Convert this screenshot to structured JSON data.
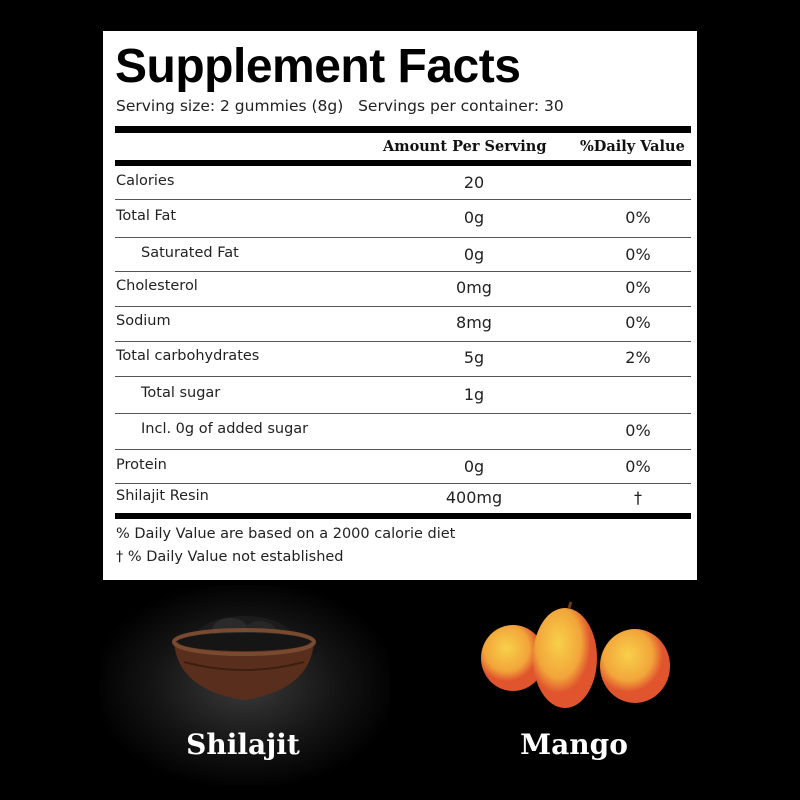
{
  "title": "Supplement Facts",
  "serving": "Serving size: 2 gummies (8g)   Servings per container: 30",
  "headers": {
    "amount": "Amount Per Serving",
    "dv": "%Daily Value"
  },
  "rows": [
    {
      "label": "Calories",
      "amount": "20",
      "dv": ""
    },
    {
      "label": "Total Fat",
      "amount": "0g",
      "dv": "0%"
    },
    {
      "label": "Saturated Fat",
      "amount": "0g",
      "dv": "0%"
    },
    {
      "label": "Cholesterol",
      "amount": "0mg",
      "dv": "0%"
    },
    {
      "label": "Sodium",
      "amount": "8mg",
      "dv": "0%"
    },
    {
      "label": "Total carbohydrates",
      "amount": "5g",
      "dv": "2%"
    },
    {
      "label": "Total sugar",
      "amount": "1g",
      "dv": ""
    },
    {
      "label": "Incl. 0g of added sugar",
      "amount": "",
      "dv": "0%"
    },
    {
      "label": "Protein",
      "amount": "0g",
      "dv": "0%"
    },
    {
      "label": "Shilajit Resin",
      "amount": "400mg",
      "dv": "†"
    }
  ],
  "footnotes": [
    "% Daily Value are based on a 2000 calorie diet",
    "† % Daily Value not established"
  ],
  "ingredients": [
    {
      "name": "Shilajit",
      "icon": "shilajit-bowl-icon"
    },
    {
      "name": "Mango",
      "icon": "mango-icon"
    }
  ],
  "colors": {
    "background": "#000000",
    "panel": "#ffffff",
    "mango": "#f5b335"
  }
}
